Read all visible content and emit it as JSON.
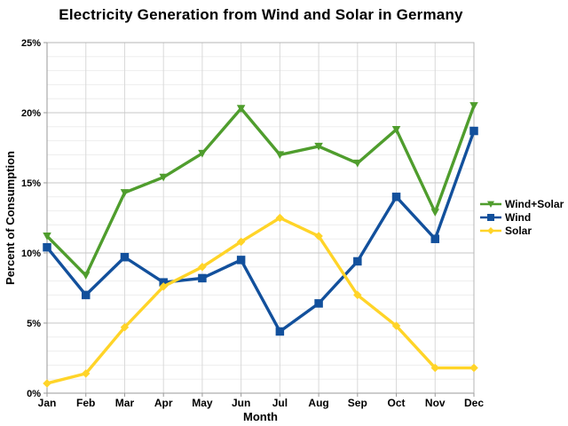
{
  "chart_data": {
    "type": "line",
    "title": "Electricity Generation from Wind and Solar in Germany",
    "xlabel": "Month",
    "ylabel": "Percent of Consumption",
    "categories": [
      "Jan",
      "Feb",
      "Mar",
      "Apr",
      "May",
      "Jun",
      "Jul",
      "Aug",
      "Sep",
      "Oct",
      "Nov",
      "Dec"
    ],
    "ylim": [
      0,
      25
    ],
    "y_major_step": 5,
    "y_minor_step": 1,
    "grid": true,
    "legend_position": "right",
    "y_ticks": [
      {
        "value": 0,
        "label": "0%"
      },
      {
        "value": 5,
        "label": "5%"
      },
      {
        "value": 10,
        "label": "10%"
      },
      {
        "value": 15,
        "label": "15%"
      },
      {
        "value": 20,
        "label": "20%"
      },
      {
        "value": 25,
        "label": "25%"
      }
    ],
    "series": [
      {
        "name": "Wind+Solar",
        "color": "#4F9D2D",
        "marker": "triangle-down",
        "values": [
          11.2,
          8.4,
          14.3,
          15.4,
          17.1,
          20.3,
          17.0,
          17.6,
          16.4,
          18.8,
          12.9,
          20.5
        ]
      },
      {
        "name": "Wind",
        "color": "#12509C",
        "marker": "square",
        "values": [
          10.4,
          7.0,
          9.7,
          7.9,
          8.2,
          9.5,
          4.4,
          6.4,
          9.4,
          14.0,
          11.0,
          18.7
        ]
      },
      {
        "name": "Solar",
        "color": "#FFD428",
        "marker": "diamond",
        "values": [
          0.7,
          1.4,
          4.7,
          7.6,
          9.0,
          10.8,
          12.5,
          11.2,
          7.0,
          4.8,
          1.8,
          1.8
        ]
      }
    ]
  }
}
